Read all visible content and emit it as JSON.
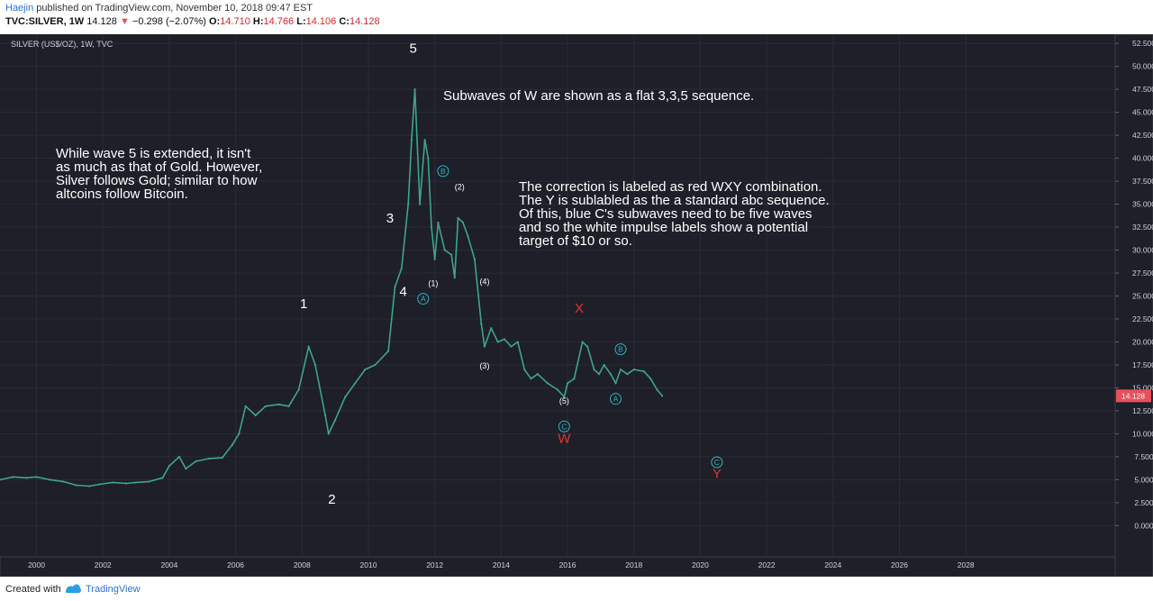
{
  "header": {
    "author": "Haejin",
    "published": "published on TradingView.com, November 10, 2018 09:47 EST",
    "symbol": "TVC:SILVER, 1W",
    "last": "14.128",
    "change": "−0.298 (−2.07%)",
    "open_label": "O:",
    "open": "14.710",
    "high_label": "H:",
    "high": "14.766",
    "low_label": "L:",
    "low": "14.106",
    "close_label": "C:",
    "close": "14.128"
  },
  "chart_data": {
    "type": "line",
    "title": "SILVER (US$/OZ), 1W, TVC",
    "price_axis": [
      "52.500",
      "50.000",
      "47.500",
      "45.000",
      "42.500",
      "40.000",
      "37.500",
      "35.000",
      "32.500",
      "30.000",
      "27.500",
      "25.000",
      "22.500",
      "20.000",
      "17.500",
      "15.000",
      "12.500",
      "10.000",
      "7.500",
      "5.000",
      "2.500",
      "0.000"
    ],
    "y_ticks": [
      52.5,
      50,
      47.5,
      45,
      42.5,
      40,
      37.5,
      35,
      32.5,
      30,
      27.5,
      25,
      22.5,
      20,
      17.5,
      15,
      12.5,
      10,
      7.5,
      5,
      2.5,
      0
    ],
    "time_axis": [
      "2000",
      "2002",
      "2004",
      "2006",
      "2008",
      "2010",
      "2012",
      "2014",
      "2016",
      "2018",
      "2020",
      "2022",
      "2024",
      "2026",
      "2028"
    ],
    "x_ticks": [
      2000,
      2002,
      2004,
      2006,
      2008,
      2010,
      2012,
      2014,
      2016,
      2018,
      2020,
      2022,
      2024,
      2026,
      2028
    ],
    "xlim": [
      1998.9,
      2032.5
    ],
    "ylim": [
      -3.4,
      53.5
    ],
    "last_price_label": "14.128",
    "series": [
      {
        "x": [
          1998.9,
          1999.3,
          1999.7,
          2000.0,
          2000.4,
          2000.8,
          2001.2,
          2001.6,
          2001.9,
          2002.3,
          2002.7,
          2003.0,
          2003.4,
          2003.8,
          2004.0,
          2004.3,
          2004.5,
          2004.8,
          2005.2,
          2005.6,
          2005.9,
          2006.1,
          2006.3,
          2006.6,
          2006.9,
          2007.3,
          2007.6,
          2007.9,
          2008.2,
          2008.4,
          2008.7,
          2008.8,
          2009.0,
          2009.3,
          2009.6,
          2009.9,
          2010.2,
          2010.6,
          2010.8,
          2011.0,
          2011.2,
          2011.3,
          2011.4,
          2011.55,
          2011.7,
          2011.8,
          2011.9,
          2012.0,
          2012.1,
          2012.3,
          2012.5,
          2012.6,
          2012.7,
          2012.85,
          2013.0,
          2013.2,
          2013.4,
          2013.5,
          2013.7,
          2013.9,
          2014.1,
          2014.3,
          2014.5,
          2014.7,
          2014.9,
          2015.1,
          2015.4,
          2015.7,
          2015.9,
          2016.0,
          2016.2,
          2016.45,
          2016.6,
          2016.8,
          2016.95,
          2017.1,
          2017.3,
          2017.45,
          2017.6,
          2017.8,
          2018.0,
          2018.3,
          2018.5,
          2018.7,
          2018.85
        ],
        "close": [
          5.0,
          5.3,
          5.2,
          5.3,
          5.0,
          4.8,
          4.4,
          4.3,
          4.5,
          4.7,
          4.6,
          4.7,
          4.8,
          5.2,
          6.5,
          7.5,
          6.2,
          7.0,
          7.3,
          7.4,
          8.8,
          10.0,
          13.0,
          12.0,
          13.0,
          13.2,
          13.0,
          14.8,
          19.5,
          17.5,
          12.0,
          10.0,
          11.5,
          14.0,
          15.5,
          17.0,
          17.5,
          19.0,
          26.0,
          28.0,
          35.0,
          42.0,
          47.5,
          35.0,
          42.0,
          40.0,
          32.5,
          29.0,
          33.0,
          30.0,
          29.5,
          27.0,
          33.5,
          33.0,
          31.5,
          29.0,
          22.0,
          19.5,
          21.5,
          20.0,
          20.3,
          19.5,
          20.0,
          17.0,
          16.0,
          16.5,
          15.5,
          14.8,
          14.0,
          15.5,
          16.0,
          20.0,
          19.5,
          17.0,
          16.5,
          17.5,
          16.5,
          15.5,
          17.0,
          16.5,
          17.0,
          16.8,
          16.0,
          14.8,
          14.128
        ]
      }
    ],
    "annotations": {
      "wave_labels": [
        {
          "text": "1",
          "x": 2008.05,
          "y": 23.7
        },
        {
          "text": "2",
          "x": 2008.9,
          "y": 2.4
        },
        {
          "text": "3",
          "x": 2010.65,
          "y": 33.0
        },
        {
          "text": "4",
          "x": 2011.05,
          "y": 25.0
        },
        {
          "text": "5",
          "x": 2011.35,
          "y": 51.5
        },
        {
          "text": "(1)",
          "x": 2011.95,
          "y": 26.1
        },
        {
          "text": "(2)",
          "x": 2012.75,
          "y": 36.6
        },
        {
          "text": "(3)",
          "x": 2013.5,
          "y": 17.1
        },
        {
          "text": "(4)",
          "x": 2013.5,
          "y": 26.3
        },
        {
          "text": "(5)",
          "x": 2015.9,
          "y": 13.3
        }
      ],
      "circle_labels": [
        {
          "text": "A",
          "x": 2011.65,
          "y": 24.7
        },
        {
          "text": "B",
          "x": 2012.25,
          "y": 38.6
        },
        {
          "text": "C",
          "x": 2015.9,
          "y": 10.8
        },
        {
          "text": "B",
          "x": 2017.6,
          "y": 19.2
        },
        {
          "text": "A",
          "x": 2017.45,
          "y": 13.8
        },
        {
          "text": "C",
          "x": 2020.5,
          "y": 6.9
        }
      ],
      "red_labels": [
        {
          "text": "X",
          "x": 2016.35,
          "y": 23.2
        },
        {
          "text": "W",
          "x": 2015.9,
          "y": 9.0
        },
        {
          "text": "Y",
          "x": 2020.5,
          "y": 5.2
        }
      ],
      "notes": [
        [
          "Subwaves of W are shown as a flat 3,3,5 sequence."
        ],
        [
          "While wave 5 is extended, it isn't",
          "as much as that of Gold. However,",
          "Silver follows Gold; similar to how",
          "altcoins follow Bitcoin."
        ],
        [
          "The correction is labeled as red WXY combination.",
          "The Y is sublabled as the a standard abc sequence.",
          "Of this, blue C's subwaves need to be five waves",
          "and so the white impulse labels show a potential",
          "target of $10 or so."
        ]
      ]
    }
  },
  "footer": {
    "created_with": "Created with",
    "brand": "TradingView"
  },
  "colors": {
    "background": "#1e1f28",
    "candle": "#3fa48d",
    "candle_down": "#e05757",
    "grid": "#2a2c36",
    "text": "#ffffff",
    "cyan": "#2fb6c6",
    "red_label": "#e5352f",
    "last_price_bg": "#e8505b"
  }
}
